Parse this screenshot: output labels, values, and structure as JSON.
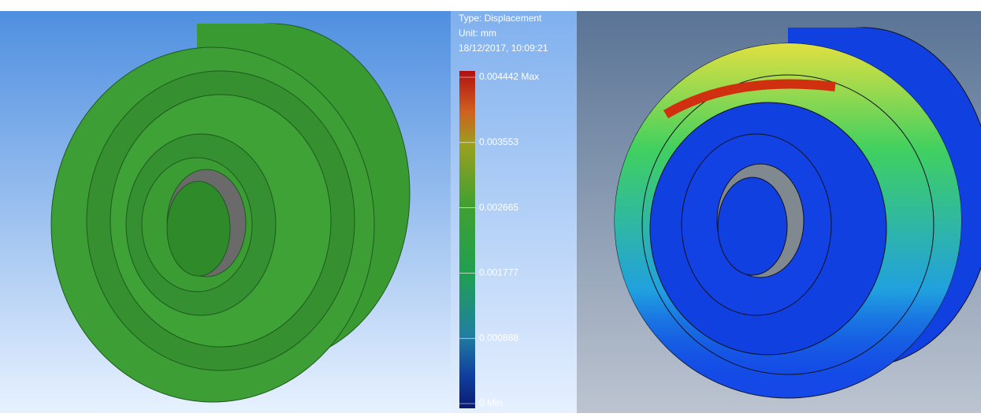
{
  "legend": {
    "type": "Type: Displacement",
    "unit": "Unit: mm",
    "timestamp": "18/12/2017, 10:09:21",
    "labels": [
      "0.004442 Max",
      "0.003553",
      "0.002665",
      "0.001777",
      "0.000888",
      "0 Min"
    ]
  }
}
